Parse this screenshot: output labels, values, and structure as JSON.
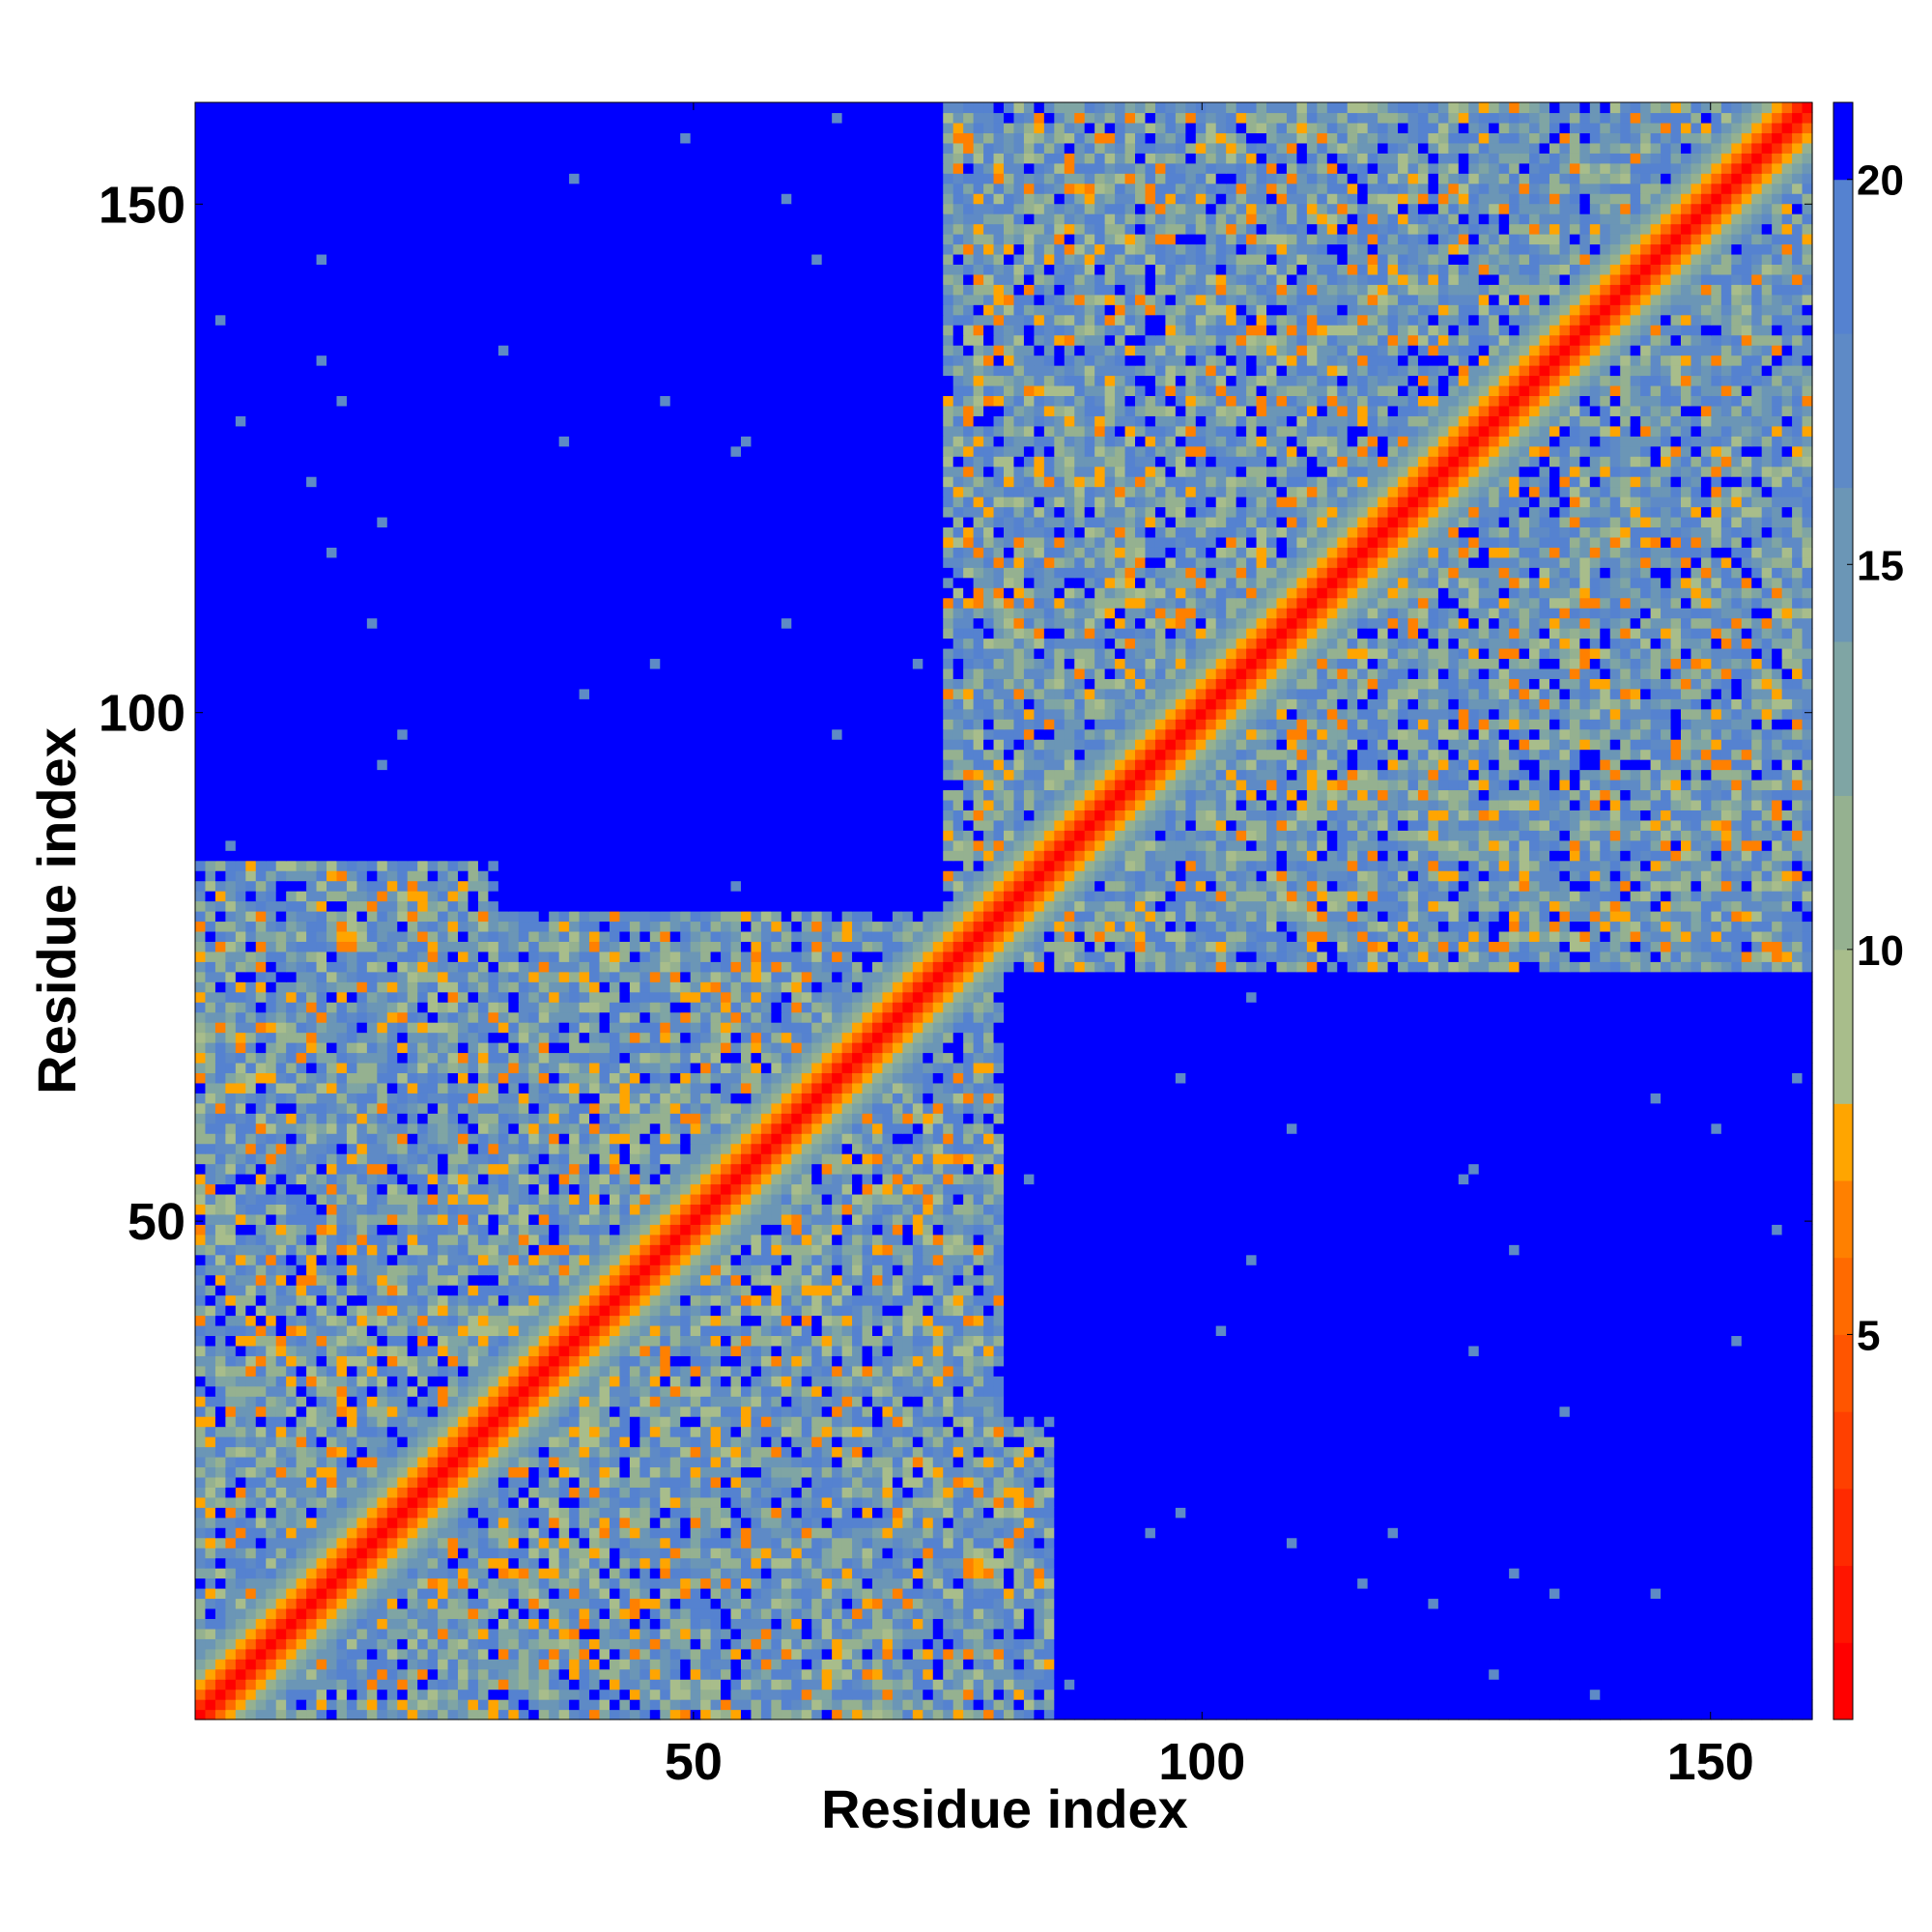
{
  "chart_data": {
    "type": "heatmap",
    "title": "",
    "xlabel": "Residue index",
    "ylabel": "Residue index",
    "n_residues": 160,
    "xlim": [
      1,
      160
    ],
    "ylim": [
      1,
      160
    ],
    "x_ticks": [
      50,
      100,
      150
    ],
    "y_ticks": [
      50,
      100,
      150
    ],
    "x_tick_labels": [
      "50",
      "100",
      "150"
    ],
    "y_tick_labels": [
      "50",
      "100",
      "150"
    ],
    "symmetric": true,
    "value_description": "pairwise residue distance map; diagonal values near 0, background saturated at colorbar maximum",
    "colorbar": {
      "range": [
        0,
        21
      ],
      "ticks": [
        5,
        10,
        15,
        20
      ],
      "tick_labels": [
        "5",
        "10",
        "15",
        "20"
      ],
      "levels": [
        {
          "upper": 1,
          "color": "#ff0000"
        },
        {
          "upper": 2,
          "color": "#ff1500"
        },
        {
          "upper": 3,
          "color": "#ff2a00"
        },
        {
          "upper": 4,
          "color": "#ff4000"
        },
        {
          "upper": 5,
          "color": "#ff5500"
        },
        {
          "upper": 6,
          "color": "#ff6a00"
        },
        {
          "upper": 7,
          "color": "#ff8000"
        },
        {
          "upper": 8,
          "color": "#ffa500"
        },
        {
          "upper": 10,
          "color": "#a8bd8b"
        },
        {
          "upper": 12,
          "color": "#95b190"
        },
        {
          "upper": 14,
          "color": "#7fa5a4"
        },
        {
          "upper": 16,
          "color": "#6b96b6"
        },
        {
          "upper": 18,
          "color": "#5e8ac6"
        },
        {
          "upper": 20,
          "color": "#5582d0"
        },
        {
          "upper": 21,
          "color": "#0000ff"
        }
      ]
    },
    "structure": {
      "diagonal_value": 0,
      "band_width": 6,
      "background_value": 21,
      "contact_domains": [
        {
          "x_range": [
            1,
            30
          ],
          "y_range": [
            1,
            85
          ]
        },
        {
          "x_range": [
            1,
            85
          ],
          "y_range": [
            1,
            30
          ]
        },
        {
          "x_range": [
            10,
            75
          ],
          "y_range": [
            20,
            80
          ]
        },
        {
          "x_range": [
            20,
            80
          ],
          "y_range": [
            10,
            75
          ]
        },
        {
          "x_range": [
            75,
            160
          ],
          "y_range": [
            75,
            160
          ]
        },
        {
          "x_range": [
            90,
            160
          ],
          "y_range": [
            95,
            160
          ]
        },
        {
          "x_range": [
            95,
            160
          ],
          "y_range": [
            90,
            160
          ]
        }
      ]
    }
  }
}
